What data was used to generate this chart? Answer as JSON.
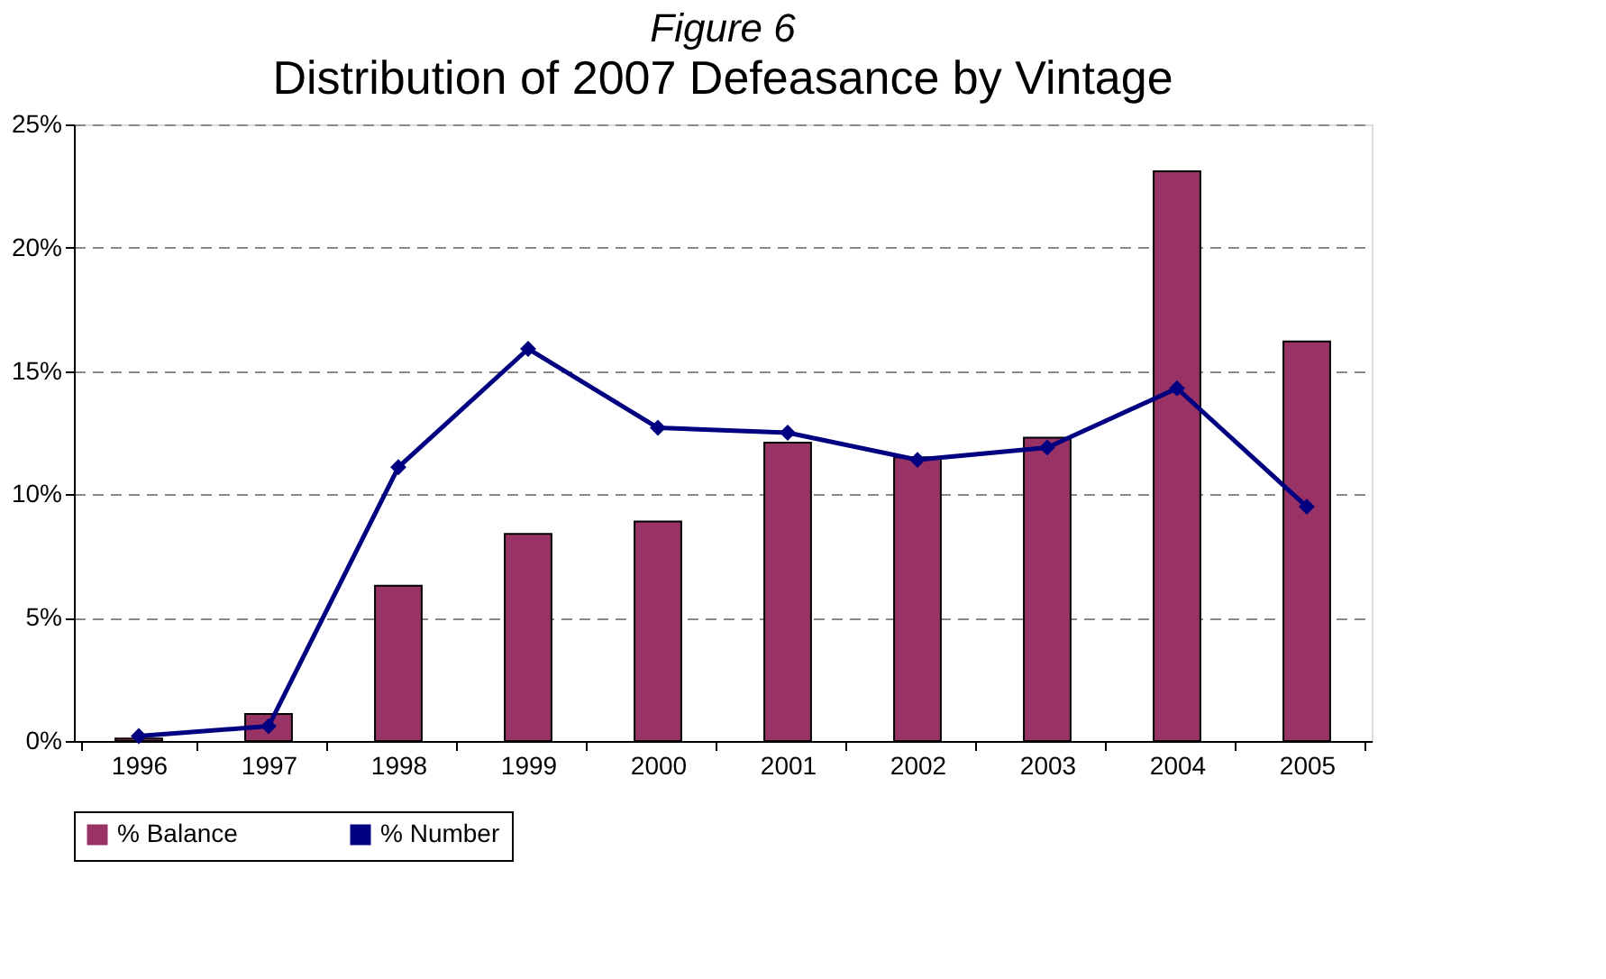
{
  "chart_data": {
    "type": "bar",
    "title": "Figure 6",
    "subtitle": "Distribution of 2007 Defeasance by Vintage",
    "categories": [
      "1996",
      "1997",
      "1998",
      "1999",
      "2000",
      "2001",
      "2002",
      "2003",
      "2004",
      "2005"
    ],
    "series": [
      {
        "name": "% Balance",
        "color": "#993366",
        "values": [
          0.1,
          1.1,
          6.3,
          8.4,
          8.9,
          12.1,
          11.5,
          12.3,
          23.1,
          16.2
        ]
      },
      {
        "name": "% Number",
        "type": "line",
        "color": "#000080",
        "marker": "diamond",
        "values": [
          0.2,
          0.6,
          11.1,
          15.9,
          12.7,
          12.5,
          11.4,
          11.9,
          14.3,
          9.5
        ]
      }
    ],
    "ylim": [
      0,
      25
    ],
    "yticks": [
      {
        "value": 0,
        "label": "0%"
      },
      {
        "value": 5,
        "label": "5%"
      },
      {
        "value": 10,
        "label": "10%"
      },
      {
        "value": 15,
        "label": "15%"
      },
      {
        "value": 20,
        "label": "20%"
      },
      {
        "value": 25,
        "label": "25%"
      }
    ],
    "grid": "y",
    "legend": "bottom"
  }
}
